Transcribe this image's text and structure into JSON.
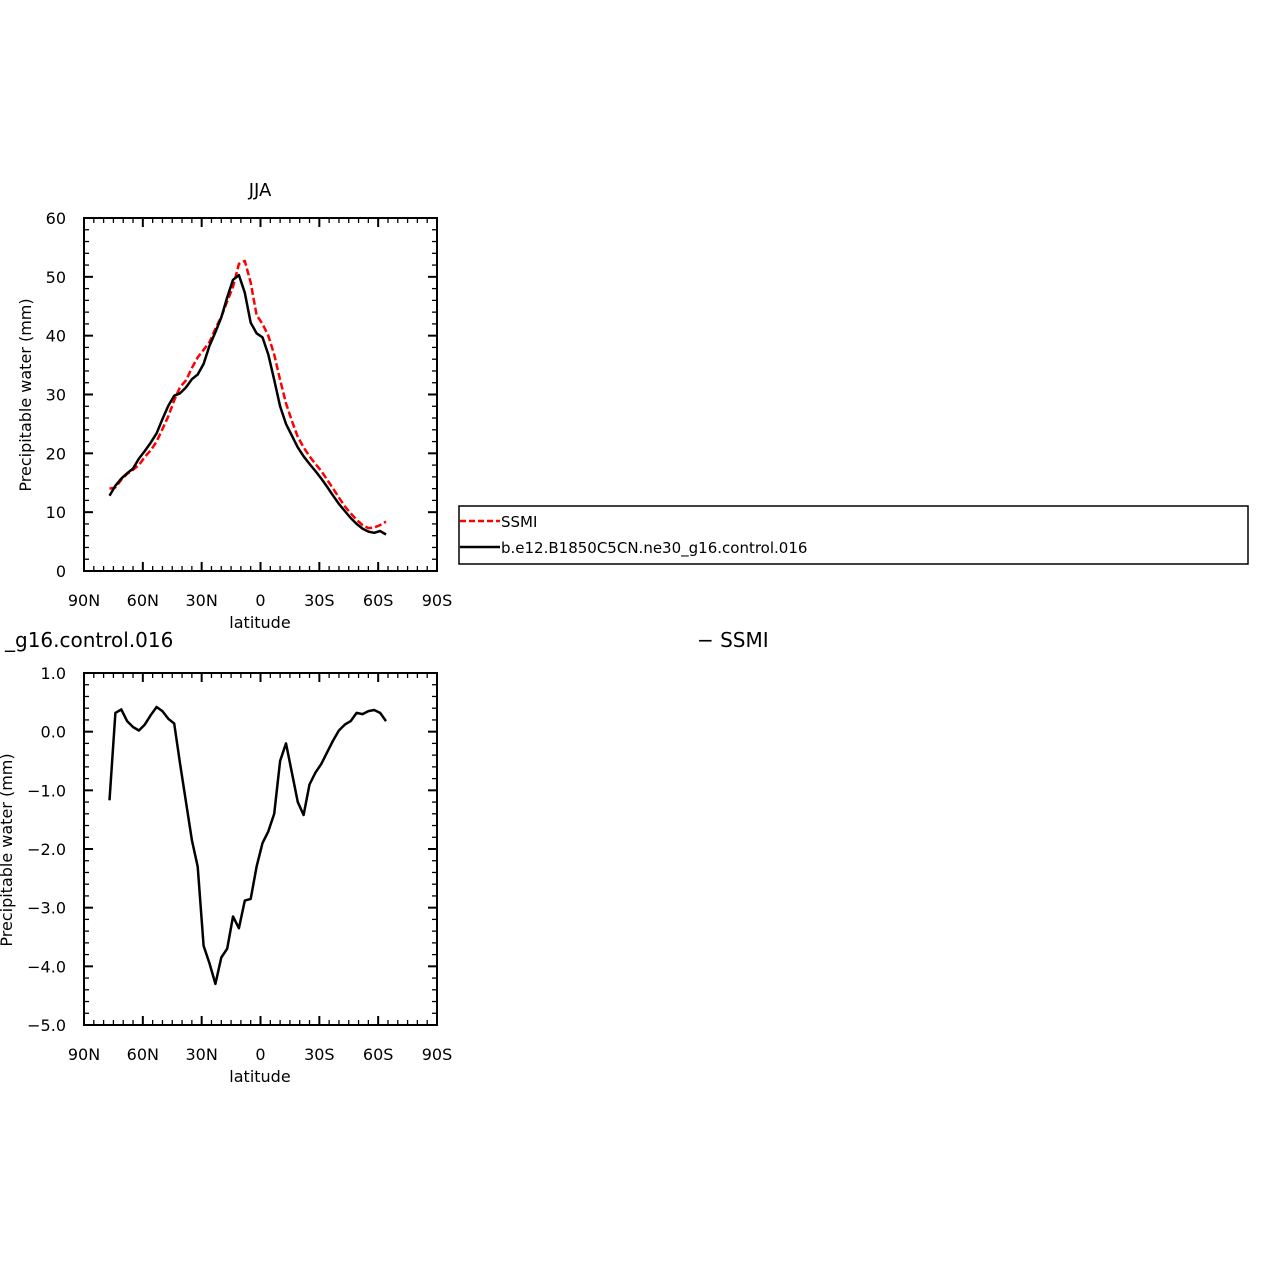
{
  "chart_data": [
    {
      "type": "line",
      "title": "JJA",
      "xlabel": "latitude",
      "ylabel": "Precipitable water (mm)",
      "x_ticks": [
        "90N",
        "60N",
        "30N",
        "0",
        "30S",
        "60S",
        "90S"
      ],
      "y_ticks": [
        "0",
        "10",
        "20",
        "30",
        "40",
        "50",
        "60"
      ],
      "xlim": [
        90,
        -90
      ],
      "ylim": [
        0,
        60
      ],
      "legend": {
        "placement": "right of plot",
        "entries": [
          "SSMI",
          "b.e12.B1850C5CN.ne30_g16.control.016"
        ]
      },
      "series": [
        {
          "name": "SSMI",
          "color": "#ff0000",
          "dash": "dashed",
          "x": [
            77,
            74,
            71,
            68,
            65,
            62,
            59,
            56,
            53,
            50,
            47,
            44,
            41,
            38,
            35,
            32,
            29,
            26,
            23,
            20,
            17,
            14,
            11,
            8,
            5,
            2,
            -1,
            -4,
            -7,
            -10,
            -13,
            -16,
            -19,
            -22,
            -25,
            -28,
            -31,
            -34,
            -37,
            -40,
            -43,
            -46,
            -49,
            -52,
            -55,
            -58,
            -61,
            -64
          ],
          "values": [
            14.0,
            14.2,
            15.5,
            16.5,
            17.2,
            18.0,
            19.4,
            20.5,
            22.0,
            24.1,
            26.3,
            29.0,
            31.3,
            32.4,
            34.5,
            36.3,
            37.6,
            38.9,
            41.2,
            43.2,
            45.8,
            48.3,
            52.2,
            52.7,
            49.0,
            43.5,
            42.0,
            40.0,
            36.8,
            32.5,
            28.5,
            25.5,
            22.8,
            21.0,
            19.5,
            18.2,
            17.0,
            15.5,
            14.0,
            12.5,
            11.0,
            9.8,
            8.7,
            7.8,
            7.3,
            7.4,
            7.8,
            8.4
          ]
        },
        {
          "name": "b.e12.B1850C5CN.ne30_g16.control.016",
          "color": "#000000",
          "dash": "solid",
          "x": [
            77,
            74,
            71,
            68,
            65,
            62,
            59,
            56,
            53,
            50,
            47,
            44,
            41,
            38,
            35,
            32,
            29,
            26,
            23,
            20,
            17,
            14,
            11,
            8,
            5,
            2,
            -1,
            -4,
            -7,
            -10,
            -13,
            -16,
            -19,
            -22,
            -25,
            -28,
            -31,
            -34,
            -37,
            -40,
            -43,
            -46,
            -49,
            -52,
            -55,
            -58,
            -61,
            -64
          ],
          "values": [
            12.8,
            14.5,
            15.7,
            16.6,
            17.4,
            19.1,
            20.4,
            21.8,
            23.4,
            25.8,
            28.1,
            29.8,
            30.2,
            31.2,
            32.6,
            33.4,
            35.2,
            38.3,
            40.6,
            43.1,
            46.5,
            49.5,
            50.3,
            47.3,
            42.2,
            40.4,
            39.7,
            36.8,
            32.5,
            28.0,
            25.0,
            23.0,
            21.0,
            19.5,
            18.2,
            17.0,
            15.7,
            14.3,
            12.8,
            11.4,
            10.2,
            9.0,
            8.0,
            7.2,
            6.7,
            6.5,
            6.8,
            6.2
          ]
        }
      ]
    },
    {
      "type": "line",
      "title": "_g16.control.016",
      "title_right": "− SSMI",
      "xlabel": "latitude",
      "ylabel": "Precipitable water (mm)",
      "x_ticks": [
        "90N",
        "60N",
        "30N",
        "0",
        "30S",
        "60S",
        "90S"
      ],
      "y_ticks": [
        "−5.0",
        "−4.0",
        "−3.0",
        "−2.0",
        "−1.0",
        "0.0",
        "1.0"
      ],
      "xlim": [
        90,
        -90
      ],
      "ylim": [
        -5,
        1
      ],
      "series": [
        {
          "color": "#000000",
          "dash": "solid",
          "x": [
            77,
            74,
            71,
            68,
            65,
            62,
            59,
            56,
            53,
            50,
            47,
            44,
            41,
            38,
            35,
            32,
            29,
            26,
            23,
            20,
            17,
            14,
            11,
            8,
            5,
            2,
            -1,
            -4,
            -7,
            -10,
            -13,
            -16,
            -19,
            -22,
            -25,
            -28,
            -31,
            -34,
            -37,
            -40,
            -43,
            -46,
            -49,
            -52,
            -55,
            -58,
            -61,
            -64
          ],
          "values": [
            -1.17,
            0.32,
            0.38,
            0.18,
            0.08,
            0.02,
            0.12,
            0.28,
            0.42,
            0.35,
            0.22,
            0.14,
            -0.55,
            -1.2,
            -1.85,
            -2.3,
            -3.65,
            -3.95,
            -4.3,
            -3.85,
            -3.7,
            -3.15,
            -3.35,
            -2.88,
            -2.85,
            -2.3,
            -1.9,
            -1.7,
            -1.4,
            -0.5,
            -0.2,
            -0.7,
            -1.2,
            -1.42,
            -0.9,
            -0.7,
            -0.55,
            -0.35,
            -0.15,
            0.02,
            0.12,
            0.18,
            0.32,
            0.3,
            0.35,
            0.37,
            0.32,
            0.18
          ]
        }
      ]
    }
  ]
}
